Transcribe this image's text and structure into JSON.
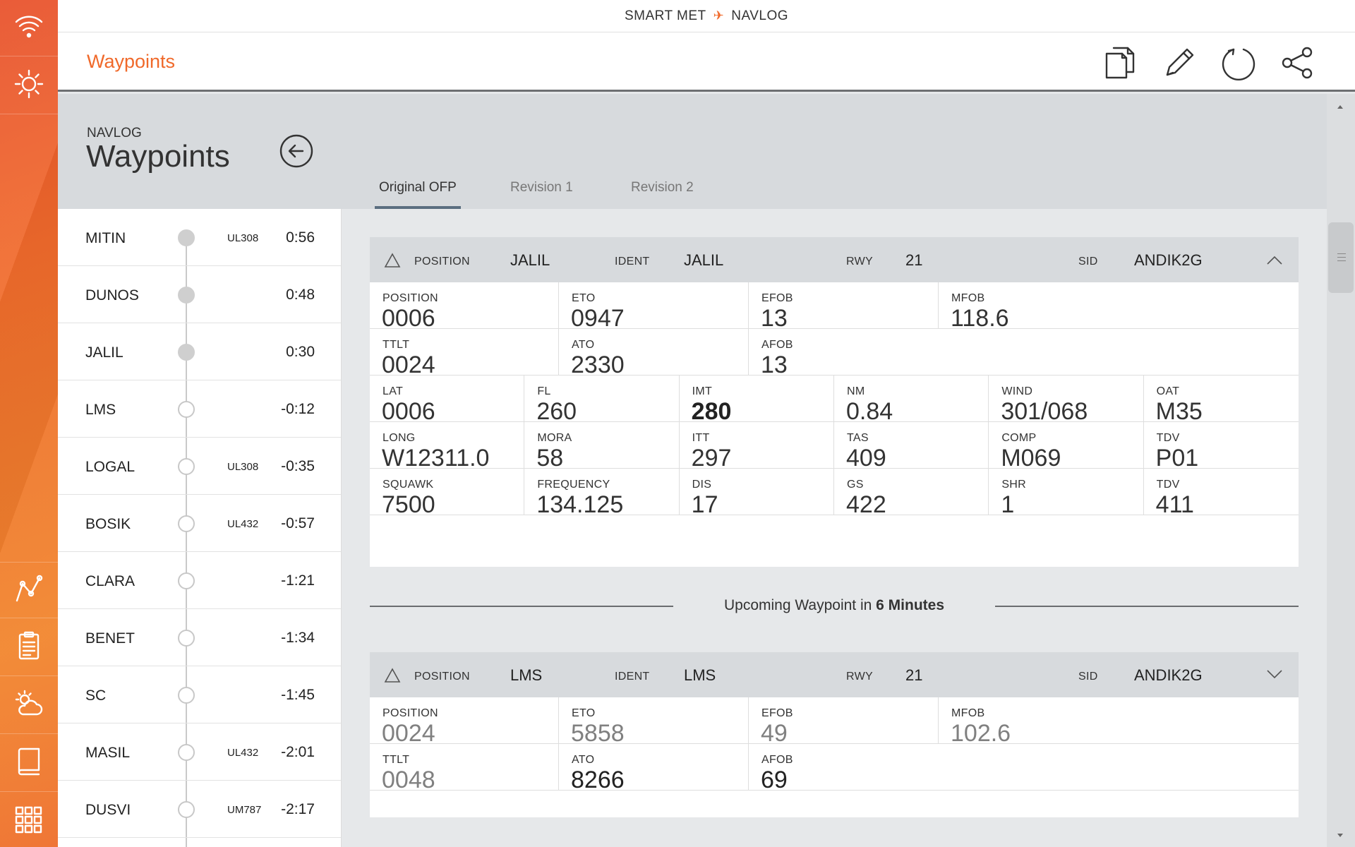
{
  "topbar": {
    "left": "SMART MET",
    "right": "NAVLOG"
  },
  "header": {
    "title": "Waypoints"
  },
  "breadcrumb": {
    "section": "NAVLOG",
    "page": "Waypoints"
  },
  "tabs": [
    {
      "label": "Original OFP",
      "active": true
    },
    {
      "label": "Revision 1",
      "active": false
    },
    {
      "label": "Revision 2",
      "active": false
    }
  ],
  "waypoints": [
    {
      "name": "MITIN",
      "airway": "UL308",
      "time": "0:56",
      "passed": true
    },
    {
      "name": "DUNOS",
      "airway": "",
      "time": "0:48",
      "passed": true
    },
    {
      "name": "JALIL",
      "airway": "",
      "time": "0:30",
      "passed": true
    },
    {
      "name": "LMS",
      "airway": "",
      "time": "-0:12",
      "passed": false
    },
    {
      "name": "LOGAL",
      "airway": "UL308",
      "time": "-0:35",
      "passed": false
    },
    {
      "name": "BOSIK",
      "airway": "UL432",
      "time": "-0:57",
      "passed": false
    },
    {
      "name": "CLARA",
      "airway": "",
      "time": "-1:21",
      "passed": false
    },
    {
      "name": "BENET",
      "airway": "",
      "time": "-1:34",
      "passed": false
    },
    {
      "name": "SC",
      "airway": "",
      "time": "-1:45",
      "passed": false
    },
    {
      "name": "MASIL",
      "airway": "UL432",
      "time": "-2:01",
      "passed": false
    },
    {
      "name": "DUSVI",
      "airway": "UM787",
      "time": "-2:17",
      "passed": false
    }
  ],
  "card1": {
    "header": {
      "position_label": "POSITION",
      "position": "JALIL",
      "ident_label": "IDENT",
      "ident": "JALIL",
      "rwy_label": "RWY",
      "rwy": "21",
      "sid_label": "SID",
      "sid": "ANDIK2G"
    },
    "row1": [
      {
        "label": "POSITION",
        "value": "0006"
      },
      {
        "label": "ETO",
        "value": "0947"
      },
      {
        "label": "EFOB",
        "value": "13"
      },
      {
        "label": "MFOB",
        "value": "118.6"
      }
    ],
    "row2": [
      {
        "label": "TTLT",
        "value": "0024"
      },
      {
        "label": "ATO",
        "value": "2330"
      },
      {
        "label": "AFOB",
        "value": "13"
      }
    ],
    "row3": [
      {
        "label": "LAT",
        "value": "0006"
      },
      {
        "label": "FL",
        "value": "260"
      },
      {
        "label": "IMT",
        "value": "280"
      },
      {
        "label": "NM",
        "value": "0.84"
      },
      {
        "label": "WIND",
        "value": "301/068"
      },
      {
        "label": "OAT",
        "value": "M35"
      }
    ],
    "row4": [
      {
        "label": "LONG",
        "value": "W12311.0"
      },
      {
        "label": "MORA",
        "value": "58"
      },
      {
        "label": "ITT",
        "value": "297"
      },
      {
        "label": "TAS",
        "value": "409"
      },
      {
        "label": "COMP",
        "value": "M069"
      },
      {
        "label": "TDV",
        "value": "P01"
      }
    ],
    "row5": [
      {
        "label": "SQUAWK",
        "value": "7500"
      },
      {
        "label": "FREQUENCY",
        "value": "134.125"
      },
      {
        "label": "DIS",
        "value": "17"
      },
      {
        "label": "GS",
        "value": "422"
      },
      {
        "label": "SHR",
        "value": "1"
      },
      {
        "label": "TDV",
        "value": "411"
      }
    ]
  },
  "upcoming": {
    "prefix": "Upcoming Waypoint in",
    "value": "6 Minutes"
  },
  "card2": {
    "header": {
      "position_label": "POSITION",
      "position": "LMS",
      "ident_label": "IDENT",
      "ident": "LMS",
      "rwy_label": "RWY",
      "rwy": "21",
      "sid_label": "SID",
      "sid": "ANDIK2G"
    },
    "row1": [
      {
        "label": "POSITION",
        "value": "0024"
      },
      {
        "label": "ETO",
        "value": "5858"
      },
      {
        "label": "EFOB",
        "value": "49"
      },
      {
        "label": "MFOB",
        "value": "102.6"
      }
    ],
    "row2": [
      {
        "label": "TTLT",
        "value": "0048"
      },
      {
        "label": "ATO",
        "value": "8266"
      },
      {
        "label": "AFOB",
        "value": "69"
      }
    ]
  },
  "colors": {
    "accent": "#f0692a",
    "panel": "#d7dadd",
    "background": "#e6e8ea"
  },
  "icons": {
    "rail": [
      "wifi-icon",
      "sun-icon",
      "route-icon",
      "clipboard-icon",
      "weather-icon",
      "book-icon",
      "grid-icon"
    ],
    "header": [
      "copy-icon",
      "edit-icon",
      "refresh-icon",
      "share-icon"
    ]
  }
}
